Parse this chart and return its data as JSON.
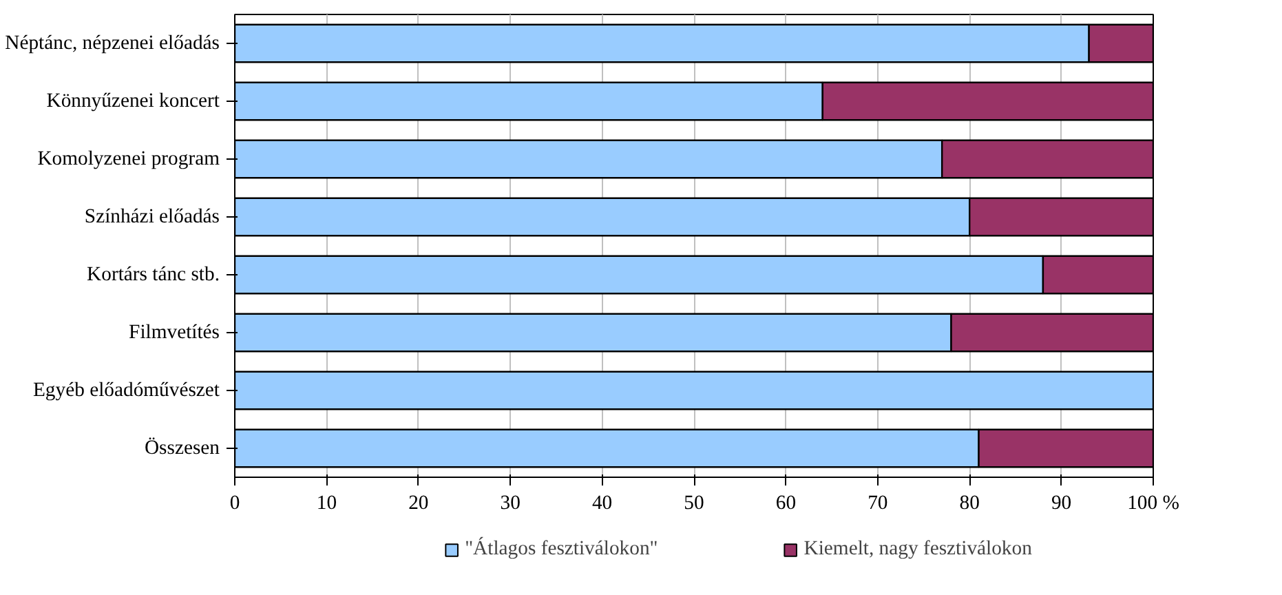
{
  "chart_data": {
    "type": "bar",
    "orientation": "horizontal",
    "stacked": true,
    "categories": [
      "Néptánc, népzenei előadás",
      "Könnyűzenei koncert",
      "Komolyzenei program",
      "Színházi előadás",
      "Kortárs tánc stb.",
      "Filmvetítés",
      "Egyéb előadóművészet",
      "Összesen"
    ],
    "series": [
      {
        "name": "\"Átlagos fesztiválokon\"",
        "color": "#99ccff",
        "values": [
          93,
          64,
          77,
          80,
          88,
          78,
          100,
          81
        ]
      },
      {
        "name": "Kiemelt, nagy fesztiválokon",
        "color": "#993366",
        "values": [
          7,
          36,
          23,
          20,
          12,
          22,
          0,
          19
        ]
      }
    ],
    "xlim": [
      0,
      100
    ],
    "xticks": [
      0,
      10,
      20,
      30,
      40,
      50,
      60,
      70,
      80,
      90,
      {
        "value": 100,
        "label": "100 %"
      }
    ],
    "grid": "x",
    "legend": "bottom"
  }
}
